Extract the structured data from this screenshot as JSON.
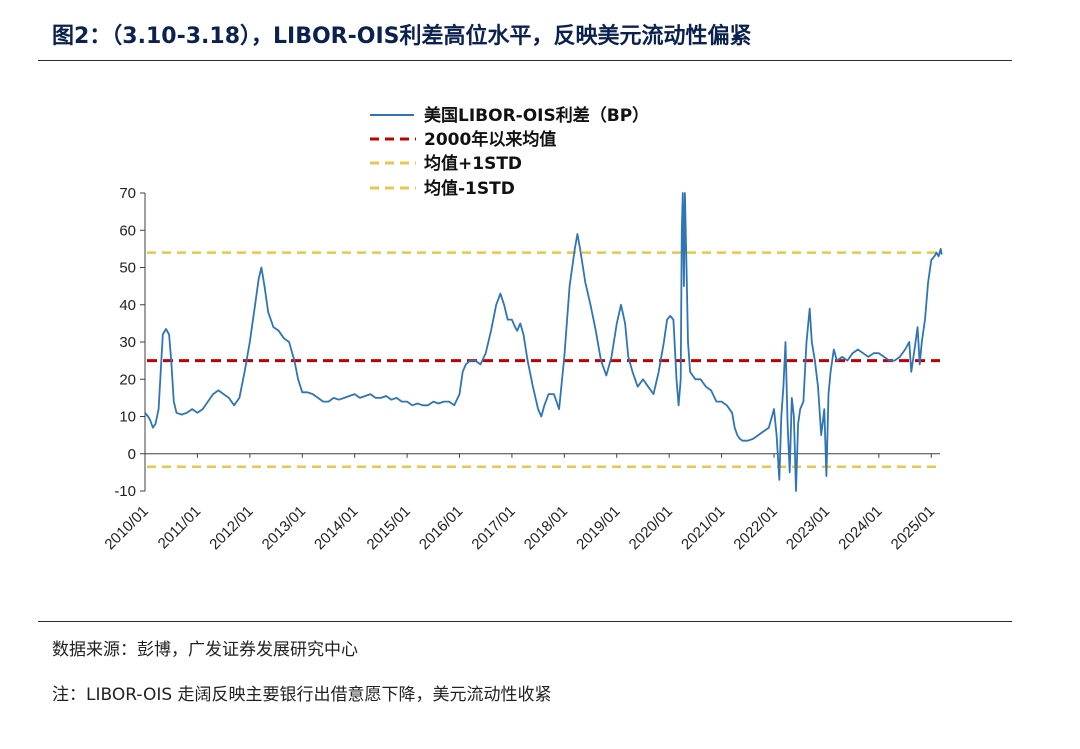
{
  "header": {
    "title": "图2：（3.10-3.18），LIBOR-OIS利差高位水平，反映美元流动性偏紧"
  },
  "footer": {
    "source": "数据来源：彭博，广发证券发展研究中心",
    "note": "注：LIBOR-OIS 走阔反映主要银行出借意愿下降，美元流动性收紧"
  },
  "colors": {
    "series": "#2e75b6",
    "mean": "#c00000",
    "std_band": "#e6c84e",
    "axis": "#404040"
  },
  "chart_data": {
    "type": "line",
    "title": "",
    "xlabel": "",
    "ylabel": "",
    "ylim": [
      -10,
      70
    ],
    "yticks": [
      -10,
      0,
      10,
      20,
      30,
      40,
      50,
      60,
      70
    ],
    "xlim": [
      "2010/01",
      "2025/03"
    ],
    "xticks": [
      "2010/01",
      "2011/01",
      "2012/01",
      "2013/01",
      "2014/01",
      "2015/01",
      "2016/01",
      "2017/01",
      "2018/01",
      "2019/01",
      "2020/01",
      "2021/01",
      "2022/01",
      "2023/01",
      "2024/01",
      "2025/01"
    ],
    "grid": false,
    "legend_position": "top-center",
    "legend": [
      "美国LIBOR-OIS利差（BP）",
      "2000年以来均值",
      "均值+1STD",
      "均值-1STD"
    ],
    "series": [
      {
        "name": "美国LIBOR-OIS利差（BP）",
        "line_style": "solid",
        "points": [
          [
            2010.0,
            11
          ],
          [
            2010.06,
            10
          ],
          [
            2010.1,
            9
          ],
          [
            2010.15,
            7
          ],
          [
            2010.2,
            8
          ],
          [
            2010.26,
            12
          ],
          [
            2010.3,
            22
          ],
          [
            2010.34,
            32
          ],
          [
            2010.4,
            33.5
          ],
          [
            2010.46,
            32
          ],
          [
            2010.5,
            25
          ],
          [
            2010.55,
            14
          ],
          [
            2010.6,
            11
          ],
          [
            2010.7,
            10.5
          ],
          [
            2010.8,
            11
          ],
          [
            2010.9,
            12
          ],
          [
            2011.0,
            11
          ],
          [
            2011.1,
            12
          ],
          [
            2011.2,
            14
          ],
          [
            2011.3,
            16
          ],
          [
            2011.4,
            17
          ],
          [
            2011.5,
            16
          ],
          [
            2011.6,
            15
          ],
          [
            2011.7,
            13
          ],
          [
            2011.8,
            15
          ],
          [
            2011.9,
            22
          ],
          [
            2012.0,
            30
          ],
          [
            2012.1,
            40
          ],
          [
            2012.17,
            47
          ],
          [
            2012.22,
            50
          ],
          [
            2012.28,
            45
          ],
          [
            2012.35,
            38
          ],
          [
            2012.45,
            34
          ],
          [
            2012.55,
            33
          ],
          [
            2012.65,
            31
          ],
          [
            2012.75,
            30
          ],
          [
            2012.85,
            25
          ],
          [
            2012.92,
            20
          ],
          [
            2013.0,
            16.5
          ],
          [
            2013.1,
            16.5
          ],
          [
            2013.2,
            16
          ],
          [
            2013.3,
            15
          ],
          [
            2013.4,
            14
          ],
          [
            2013.5,
            14
          ],
          [
            2013.6,
            15
          ],
          [
            2013.7,
            14.5
          ],
          [
            2013.8,
            15
          ],
          [
            2013.9,
            15.5
          ],
          [
            2014.0,
            16
          ],
          [
            2014.1,
            15
          ],
          [
            2014.2,
            15.5
          ],
          [
            2014.3,
            16
          ],
          [
            2014.4,
            15
          ],
          [
            2014.5,
            15
          ],
          [
            2014.6,
            15.5
          ],
          [
            2014.7,
            14.5
          ],
          [
            2014.8,
            15
          ],
          [
            2014.9,
            14
          ],
          [
            2015.0,
            14
          ],
          [
            2015.1,
            13
          ],
          [
            2015.2,
            13.5
          ],
          [
            2015.3,
            13
          ],
          [
            2015.4,
            13
          ],
          [
            2015.5,
            14
          ],
          [
            2015.6,
            13.5
          ],
          [
            2015.7,
            14
          ],
          [
            2015.8,
            14
          ],
          [
            2015.9,
            13
          ],
          [
            2016.0,
            16
          ],
          [
            2016.06,
            22
          ],
          [
            2016.12,
            24
          ],
          [
            2016.2,
            25
          ],
          [
            2016.3,
            25
          ],
          [
            2016.4,
            24
          ],
          [
            2016.5,
            27
          ],
          [
            2016.6,
            33
          ],
          [
            2016.7,
            40
          ],
          [
            2016.78,
            43
          ],
          [
            2016.85,
            40
          ],
          [
            2016.92,
            36
          ],
          [
            2017.0,
            36
          ],
          [
            2017.06,
            34
          ],
          [
            2017.1,
            33
          ],
          [
            2017.16,
            35
          ],
          [
            2017.22,
            32
          ],
          [
            2017.3,
            25
          ],
          [
            2017.4,
            18
          ],
          [
            2017.5,
            12
          ],
          [
            2017.56,
            10
          ],
          [
            2017.62,
            13
          ],
          [
            2017.7,
            16
          ],
          [
            2017.8,
            16
          ],
          [
            2017.9,
            12
          ],
          [
            2018.0,
            26
          ],
          [
            2018.1,
            45
          ],
          [
            2018.2,
            55
          ],
          [
            2018.25,
            59
          ],
          [
            2018.3,
            55
          ],
          [
            2018.4,
            46
          ],
          [
            2018.5,
            40
          ],
          [
            2018.6,
            33
          ],
          [
            2018.7,
            25
          ],
          [
            2018.8,
            21
          ],
          [
            2018.9,
            26
          ],
          [
            2019.0,
            35
          ],
          [
            2019.08,
            40
          ],
          [
            2019.16,
            35
          ],
          [
            2019.22,
            26
          ],
          [
            2019.3,
            22
          ],
          [
            2019.4,
            18
          ],
          [
            2019.5,
            20
          ],
          [
            2019.6,
            18
          ],
          [
            2019.7,
            16
          ],
          [
            2019.8,
            22
          ],
          [
            2019.9,
            30
          ],
          [
            2019.96,
            36
          ],
          [
            2020.02,
            37
          ],
          [
            2020.08,
            36
          ],
          [
            2020.14,
            20
          ],
          [
            2020.18,
            13
          ],
          [
            2020.22,
            20
          ],
          [
            2020.24,
            60
          ],
          [
            2020.26,
            70
          ],
          [
            2020.28,
            45
          ],
          [
            2020.3,
            70
          ],
          [
            2020.33,
            50
          ],
          [
            2020.36,
            30
          ],
          [
            2020.4,
            22
          ],
          [
            2020.5,
            20
          ],
          [
            2020.6,
            20
          ],
          [
            2020.7,
            18
          ],
          [
            2020.8,
            17
          ],
          [
            2020.9,
            14
          ],
          [
            2021.0,
            14
          ],
          [
            2021.1,
            13
          ],
          [
            2021.2,
            11
          ],
          [
            2021.25,
            7
          ],
          [
            2021.3,
            5
          ],
          [
            2021.35,
            4
          ],
          [
            2021.4,
            3.5
          ],
          [
            2021.5,
            3.5
          ],
          [
            2021.6,
            4
          ],
          [
            2021.7,
            5
          ],
          [
            2021.8,
            6
          ],
          [
            2021.9,
            7
          ],
          [
            2022.0,
            12
          ],
          [
            2022.05,
            5
          ],
          [
            2022.1,
            -7
          ],
          [
            2022.14,
            10
          ],
          [
            2022.18,
            18
          ],
          [
            2022.22,
            30
          ],
          [
            2022.26,
            8
          ],
          [
            2022.3,
            -5
          ],
          [
            2022.34,
            15
          ],
          [
            2022.38,
            10
          ],
          [
            2022.42,
            -10
          ],
          [
            2022.46,
            8
          ],
          [
            2022.5,
            12
          ],
          [
            2022.56,
            14
          ],
          [
            2022.62,
            30
          ],
          [
            2022.68,
            39
          ],
          [
            2022.72,
            30
          ],
          [
            2022.78,
            25
          ],
          [
            2022.84,
            18
          ],
          [
            2022.9,
            5
          ],
          [
            2022.96,
            12
          ],
          [
            2023.0,
            -6
          ],
          [
            2023.04,
            16
          ],
          [
            2023.08,
            22
          ],
          [
            2023.14,
            28
          ],
          [
            2023.2,
            25
          ],
          [
            2023.3,
            26
          ],
          [
            2023.4,
            25
          ],
          [
            2023.5,
            27
          ],
          [
            2023.6,
            28
          ],
          [
            2023.7,
            27
          ],
          [
            2023.8,
            26
          ],
          [
            2023.9,
            27
          ],
          [
            2024.0,
            27
          ],
          [
            2024.1,
            26
          ],
          [
            2024.2,
            25
          ],
          [
            2024.3,
            25
          ],
          [
            2024.4,
            26
          ],
          [
            2024.5,
            28
          ],
          [
            2024.58,
            30
          ],
          [
            2024.62,
            22
          ],
          [
            2024.68,
            28
          ],
          [
            2024.74,
            34
          ],
          [
            2024.78,
            24
          ],
          [
            2024.82,
            30
          ],
          [
            2024.88,
            36
          ],
          [
            2024.94,
            46
          ],
          [
            2025.0,
            52
          ],
          [
            2025.06,
            53
          ],
          [
            2025.1,
            54
          ],
          [
            2025.14,
            53
          ],
          [
            2025.18,
            55
          ],
          [
            2025.2,
            53.5
          ]
        ]
      },
      {
        "name": "2000年以来均值",
        "line_style": "dashed",
        "value": 25
      },
      {
        "name": "均值+1STD",
        "line_style": "dashed",
        "value": 54
      },
      {
        "name": "均值-1STD",
        "line_style": "dashed",
        "value": -3.5
      }
    ]
  }
}
